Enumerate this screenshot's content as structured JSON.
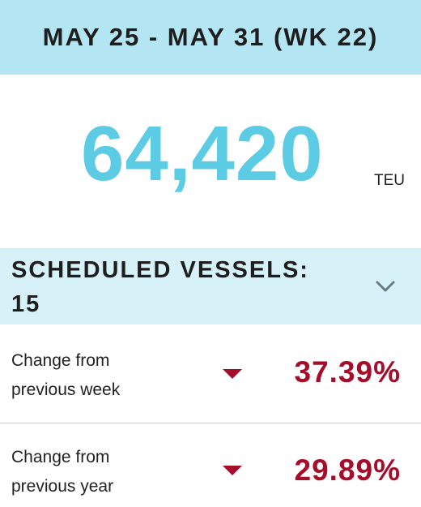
{
  "header": {
    "title": "MAY 25 - MAY 31 (WK 22)"
  },
  "total": {
    "value": "64,420",
    "unit": "TEU"
  },
  "vessels": {
    "label_line1": "SCHEDULED VESSELS:",
    "label_line2": "15",
    "toggle_icon": "chevron-down-icon"
  },
  "changes": [
    {
      "label_line1": "Change from",
      "label_line2": "previous week",
      "value": "37.39%",
      "direction": "down"
    },
    {
      "label_line1": "Change from",
      "label_line2": "previous year",
      "value": "29.89%",
      "direction": "down"
    }
  ],
  "colors": {
    "header_bg": "#b3e5f2",
    "vessels_bg": "#d6f1f8",
    "total_value": "#5ccbe4",
    "change_negative": "#a50d2b"
  }
}
